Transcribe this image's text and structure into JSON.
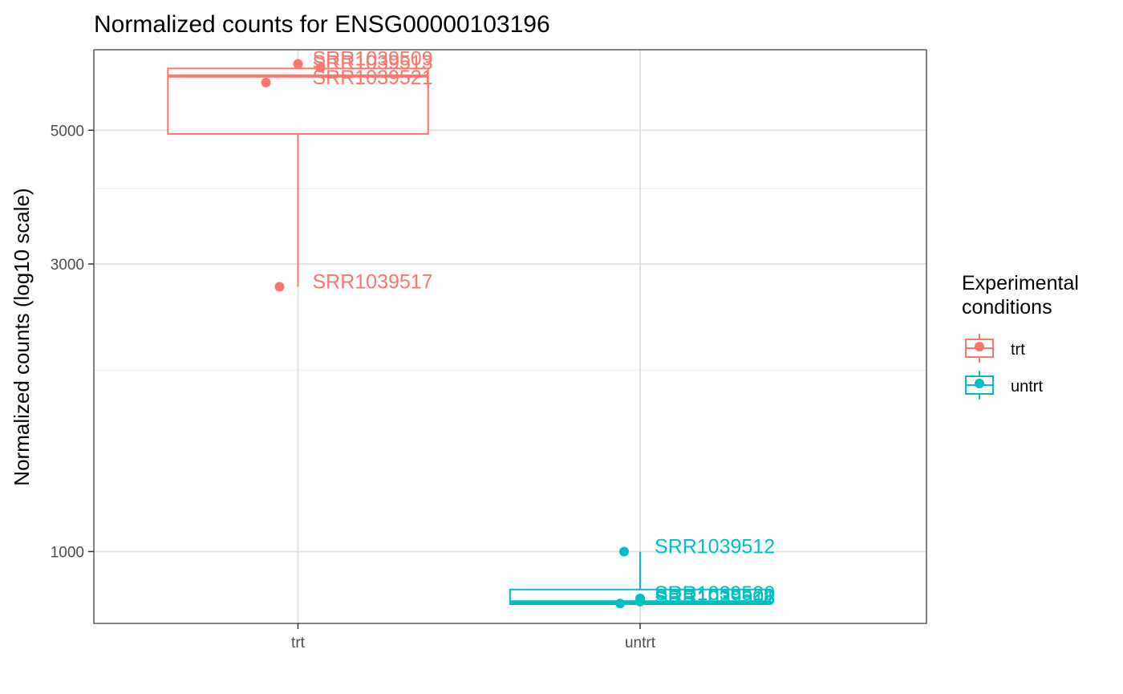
{
  "chart_data": {
    "type": "boxplot",
    "title": "Normalized counts for ENSG00000103196",
    "xlabel": "",
    "ylabel": "Normalized counts (log10 scale)",
    "y_scale": "log10",
    "ylim": [
      760,
      6800
    ],
    "y_ticks": [
      1000,
      3000,
      5000
    ],
    "y_minor_ticks": [
      2000,
      4000
    ],
    "categories": [
      "trt",
      "untrt"
    ],
    "grid": true,
    "legend": {
      "title_lines": [
        "Experimental",
        "conditions"
      ],
      "placement": "right",
      "entries": [
        "trt",
        "untrt"
      ]
    },
    "colors": {
      "trt": "#F8766D",
      "untrt": "#00BFC4"
    },
    "boxes": [
      {
        "group": "trt",
        "min": 2750,
        "q1": 4930,
        "median": 6150,
        "q3": 6330,
        "max": 6440
      },
      {
        "group": "untrt",
        "min": 815,
        "q1": 818,
        "median": 825,
        "q3": 865,
        "max": 1000
      }
    ],
    "series": [
      {
        "name": "trt",
        "points": [
          {
            "label": "SRR1039509",
            "y": 6440
          },
          {
            "label": "SRR1039513",
            "y": 6350
          },
          {
            "label": "SRR1039521",
            "y": 6000
          },
          {
            "label": "SRR1039517",
            "y": 2750
          }
        ]
      },
      {
        "name": "untrt",
        "points": [
          {
            "label": "SRR1039512",
            "y": 1000
          },
          {
            "label": "SRR1039520",
            "y": 836
          },
          {
            "label": "SRR1039508",
            "y": 826
          },
          {
            "label": "SRR1039516",
            "y": 820
          }
        ]
      }
    ]
  }
}
